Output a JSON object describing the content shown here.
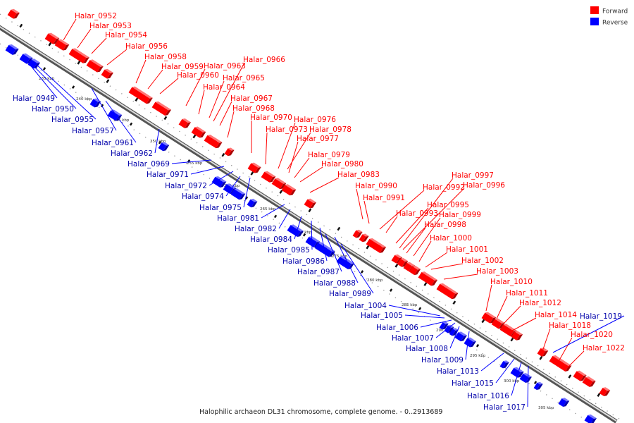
{
  "caption": "Halophilic archaeon DL31 chromosome, complete genome. - 0..2913689",
  "legend": [
    {
      "label": "Forward",
      "color": "#ff0000"
    },
    {
      "label": "Reverse",
      "color": "#0000ff"
    }
  ],
  "ticks": [
    "235 kbp",
    "240 kbp",
    "245 kbp",
    "250 kbp",
    "255 kbp",
    "260 kbp",
    "265 kbp",
    "270 kbp",
    "275 kbp",
    "280 kbp",
    "285 kbp",
    "290 kbp",
    "295 kbp",
    "300 kbp",
    "305 kbp"
  ],
  "forward_genes": [
    "Halar_0952",
    "Halar_0953",
    "Halar_0954",
    "Halar_0956",
    "Halar_0958",
    "Halar_0959",
    "Halar_0960",
    "Halar_0963",
    "Halar_0964",
    "Halar_0965",
    "Halar_0966",
    "Halar_0967",
    "Halar_0968",
    "Halar_0970",
    "Halar_0973",
    "Halar_0976",
    "Halar_0977",
    "Halar_0978",
    "Halar_0979",
    "Halar_0980",
    "Halar_0983",
    "Halar_0990",
    "Halar_0991",
    "Halar_0992",
    "Halar_0993",
    "Halar_0995",
    "Halar_0996",
    "Halar_0997",
    "Halar_0998",
    "Halar_0999",
    "Halar_1000",
    "Halar_1001",
    "Halar_1002",
    "Halar_1003",
    "Halar_1010",
    "Halar_1011",
    "Halar_1012",
    "Halar_1014",
    "Halar_1018",
    "Halar_1020",
    "Halar_1022"
  ],
  "reverse_genes": [
    "Halar_0949",
    "Halar_0950",
    "Halar_0955",
    "Halar_0957",
    "Halar_0961",
    "Halar_0962",
    "Halar_0969",
    "Halar_0971",
    "Halar_0972",
    "Halar_0974",
    "Halar_0975",
    "Halar_0981",
    "Halar_0982",
    "Halar_0984",
    "Halar_0985",
    "Halar_0986",
    "Halar_0987",
    "Halar_0988",
    "Halar_0989",
    "Halar_1004",
    "Halar_1005",
    "Halar_1006",
    "Halar_1007",
    "Halar_1008",
    "Halar_1009",
    "Halar_1013",
    "Halar_1015",
    "Halar_1016",
    "Halar_1017",
    "Halar_1019"
  ]
}
